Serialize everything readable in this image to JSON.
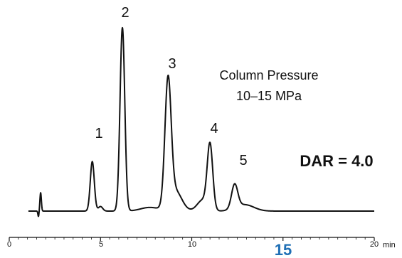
{
  "chart_data": {
    "type": "line",
    "xlabel": "min",
    "xlim": [
      0,
      20
    ],
    "x_ticks": [
      "0",
      "5",
      "10",
      "15",
      "20"
    ],
    "peaks": [
      {
        "label": "1",
        "rt": 4.55,
        "height": 0.27
      },
      {
        "label": "2",
        "rt": 6.2,
        "height": 1.0
      },
      {
        "label": "3",
        "rt": 8.7,
        "height": 0.68
      },
      {
        "label": "4",
        "rt": 11.0,
        "height": 0.35
      },
      {
        "label": "5",
        "rt": 12.35,
        "height": 0.13
      }
    ],
    "annotations": {
      "pressure_title": "Column Pressure",
      "pressure_range": "10–15 MPa",
      "dar": "DAR = 4.0"
    },
    "figure_number": "15"
  },
  "colors": {
    "trace": "#111111",
    "figure_number": "#1f6fb5"
  }
}
